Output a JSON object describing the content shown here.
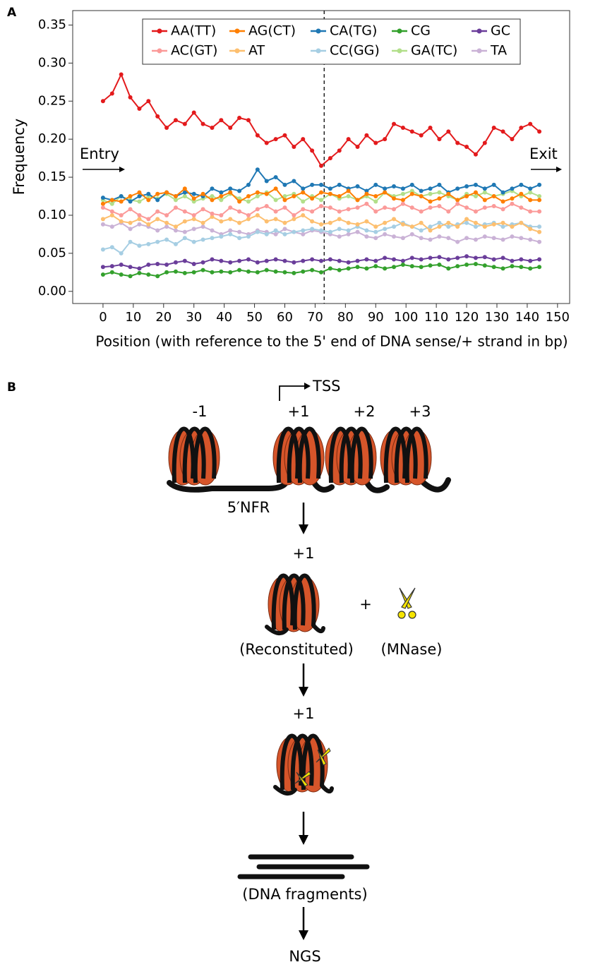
{
  "chart_data": {
    "type": "line",
    "panel": "A",
    "xlabel": "Position (with reference to the 5' end of DNA sense/+ strand in bp)",
    "ylabel": "Frequency",
    "x": [
      0,
      3,
      6,
      9,
      12,
      15,
      18,
      21,
      24,
      27,
      30,
      33,
      36,
      39,
      42,
      45,
      48,
      51,
      54,
      57,
      60,
      63,
      66,
      69,
      72,
      75,
      78,
      81,
      84,
      87,
      90,
      93,
      96,
      99,
      102,
      105,
      108,
      111,
      114,
      117,
      120,
      123,
      126,
      129,
      132,
      135,
      138,
      141,
      144
    ],
    "series": [
      {
        "name": "AA(TT)",
        "color": "#e31a1c",
        "values": [
          0.25,
          0.26,
          0.285,
          0.255,
          0.24,
          0.25,
          0.23,
          0.215,
          0.225,
          0.22,
          0.235,
          0.22,
          0.215,
          0.225,
          0.215,
          0.228,
          0.225,
          0.205,
          0.195,
          0.2,
          0.205,
          0.19,
          0.2,
          0.185,
          0.165,
          0.175,
          0.185,
          0.2,
          0.19,
          0.205,
          0.195,
          0.2,
          0.22,
          0.215,
          0.21,
          0.205,
          0.215,
          0.2,
          0.21,
          0.195,
          0.19,
          0.18,
          0.195,
          0.215,
          0.21,
          0.2,
          0.215,
          0.22,
          0.21
        ]
      },
      {
        "name": "AC(GT)",
        "color": "#fb9a99",
        "values": [
          0.11,
          0.105,
          0.1,
          0.108,
          0.1,
          0.095,
          0.105,
          0.1,
          0.11,
          0.105,
          0.1,
          0.108,
          0.102,
          0.1,
          0.11,
          0.105,
          0.1,
          0.108,
          0.112,
          0.105,
          0.11,
          0.1,
          0.108,
          0.105,
          0.112,
          0.11,
          0.105,
          0.108,
          0.11,
          0.115,
          0.105,
          0.11,
          0.108,
          0.115,
          0.11,
          0.105,
          0.11,
          0.112,
          0.105,
          0.115,
          0.11,
          0.105,
          0.11,
          0.112,
          0.108,
          0.115,
          0.11,
          0.105,
          0.105
        ]
      },
      {
        "name": "AG(CT)",
        "color": "#ff7f00",
        "values": [
          0.115,
          0.12,
          0.118,
          0.125,
          0.13,
          0.12,
          0.128,
          0.13,
          0.125,
          0.135,
          0.122,
          0.128,
          0.12,
          0.125,
          0.13,
          0.118,
          0.125,
          0.13,
          0.128,
          0.135,
          0.12,
          0.125,
          0.13,
          0.122,
          0.13,
          0.128,
          0.125,
          0.132,
          0.12,
          0.128,
          0.125,
          0.13,
          0.122,
          0.12,
          0.128,
          0.125,
          0.118,
          0.122,
          0.128,
          0.12,
          0.125,
          0.13,
          0.12,
          0.125,
          0.118,
          0.122,
          0.128,
          0.12,
          0.12
        ]
      },
      {
        "name": "AT",
        "color": "#fdbf6f",
        "values": [
          0.095,
          0.1,
          0.092,
          0.09,
          0.095,
          0.088,
          0.095,
          0.09,
          0.085,
          0.092,
          0.095,
          0.09,
          0.098,
          0.092,
          0.095,
          0.09,
          0.095,
          0.1,
          0.092,
          0.095,
          0.09,
          0.095,
          0.1,
          0.092,
          0.088,
          0.09,
          0.095,
          0.09,
          0.088,
          0.092,
          0.085,
          0.09,
          0.095,
          0.088,
          0.085,
          0.09,
          0.08,
          0.085,
          0.09,
          0.085,
          0.095,
          0.09,
          0.085,
          0.088,
          0.09,
          0.085,
          0.09,
          0.082,
          0.078
        ]
      },
      {
        "name": "CA(TG)",
        "color": "#1f78b4",
        "values": [
          0.123,
          0.12,
          0.125,
          0.118,
          0.125,
          0.128,
          0.12,
          0.13,
          0.125,
          0.13,
          0.128,
          0.125,
          0.135,
          0.13,
          0.135,
          0.132,
          0.14,
          0.16,
          0.145,
          0.15,
          0.14,
          0.145,
          0.135,
          0.14,
          0.14,
          0.135,
          0.14,
          0.135,
          0.138,
          0.132,
          0.14,
          0.135,
          0.138,
          0.135,
          0.14,
          0.132,
          0.135,
          0.14,
          0.13,
          0.135,
          0.138,
          0.14,
          0.135,
          0.14,
          0.13,
          0.135,
          0.14,
          0.135,
          0.14
        ]
      },
      {
        "name": "CC(GG)",
        "color": "#a6cee3",
        "values": [
          0.055,
          0.058,
          0.05,
          0.065,
          0.06,
          0.062,
          0.065,
          0.068,
          0.062,
          0.07,
          0.065,
          0.068,
          0.07,
          0.072,
          0.075,
          0.07,
          0.072,
          0.078,
          0.075,
          0.08,
          0.075,
          0.078,
          0.08,
          0.082,
          0.08,
          0.078,
          0.082,
          0.08,
          0.085,
          0.08,
          0.078,
          0.082,
          0.085,
          0.09,
          0.085,
          0.08,
          0.085,
          0.09,
          0.085,
          0.088,
          0.09,
          0.085,
          0.088,
          0.09,
          0.085,
          0.088,
          0.09,
          0.085,
          0.085
        ]
      },
      {
        "name": "CG",
        "color": "#33a02c",
        "values": [
          0.022,
          0.025,
          0.022,
          0.02,
          0.024,
          0.022,
          0.02,
          0.025,
          0.026,
          0.024,
          0.025,
          0.028,
          0.025,
          0.026,
          0.025,
          0.028,
          0.026,
          0.025,
          0.028,
          0.026,
          0.025,
          0.024,
          0.026,
          0.028,
          0.025,
          0.03,
          0.028,
          0.03,
          0.032,
          0.03,
          0.033,
          0.03,
          0.032,
          0.035,
          0.033,
          0.032,
          0.034,
          0.035,
          0.03,
          0.033,
          0.035,
          0.036,
          0.034,
          0.032,
          0.03,
          0.033,
          0.032,
          0.03,
          0.032
        ]
      },
      {
        "name": "GA(TC)",
        "color": "#b2df8a",
        "values": [
          0.12,
          0.115,
          0.125,
          0.12,
          0.118,
          0.125,
          0.122,
          0.128,
          0.12,
          0.125,
          0.118,
          0.122,
          0.125,
          0.12,
          0.128,
          0.122,
          0.118,
          0.125,
          0.13,
          0.12,
          0.125,
          0.128,
          0.118,
          0.125,
          0.12,
          0.128,
          0.122,
          0.125,
          0.12,
          0.125,
          0.118,
          0.13,
          0.125,
          0.128,
          0.132,
          0.125,
          0.128,
          0.13,
          0.125,
          0.12,
          0.128,
          0.125,
          0.13,
          0.125,
          0.128,
          0.132,
          0.125,
          0.13,
          0.125
        ]
      },
      {
        "name": "GC",
        "color": "#6a3d9a",
        "values": [
          0.032,
          0.033,
          0.035,
          0.032,
          0.03,
          0.035,
          0.036,
          0.035,
          0.038,
          0.04,
          0.036,
          0.038,
          0.042,
          0.04,
          0.038,
          0.04,
          0.042,
          0.038,
          0.04,
          0.042,
          0.04,
          0.038,
          0.04,
          0.042,
          0.04,
          0.042,
          0.04,
          0.038,
          0.04,
          0.042,
          0.04,
          0.044,
          0.042,
          0.04,
          0.044,
          0.042,
          0.044,
          0.045,
          0.042,
          0.044,
          0.046,
          0.044,
          0.045,
          0.042,
          0.044,
          0.04,
          0.042,
          0.04,
          0.042
        ]
      },
      {
        "name": "TA",
        "color": "#cab2d6",
        "values": [
          0.088,
          0.085,
          0.09,
          0.082,
          0.088,
          0.085,
          0.08,
          0.085,
          0.08,
          0.078,
          0.082,
          0.085,
          0.08,
          0.075,
          0.08,
          0.078,
          0.075,
          0.08,
          0.078,
          0.075,
          0.082,
          0.078,
          0.075,
          0.08,
          0.078,
          0.075,
          0.072,
          0.075,
          0.078,
          0.072,
          0.07,
          0.075,
          0.072,
          0.07,
          0.075,
          0.07,
          0.068,
          0.072,
          0.07,
          0.065,
          0.07,
          0.068,
          0.072,
          0.07,
          0.068,
          0.072,
          0.07,
          0.068,
          0.065
        ]
      }
    ],
    "xlim": [
      -10,
      154
    ],
    "ylim": [
      -0.016,
      0.369
    ],
    "xticks": [
      0,
      10,
      20,
      30,
      40,
      50,
      60,
      70,
      80,
      90,
      100,
      110,
      120,
      130,
      140,
      150
    ],
    "yticks": [
      {
        "value": 0,
        "label": "0.00"
      },
      0.05,
      {
        "value": 0.1,
        "label": "0.10"
      },
      0.15,
      {
        "value": 0.2,
        "label": "0.20"
      },
      0.25,
      {
        "value": 0.3,
        "label": "0.30"
      },
      0.35
    ],
    "vline": 73,
    "legend": "top",
    "grid": false,
    "annotations": [
      "Entry",
      "Exit"
    ]
  },
  "diagram": {
    "panel": "B",
    "tss": "TSS",
    "nucleosomes": [
      "-1",
      "+1",
      "+2",
      "+3"
    ],
    "nfr": "5′NFR",
    "step2": {
      "label": "+1",
      "plus": "+",
      "left": "(Reconstituted)",
      "right": "(MNase)"
    },
    "step3": {
      "label": "+1"
    },
    "fragments": "(DNA fragments)",
    "final": "NGS"
  }
}
